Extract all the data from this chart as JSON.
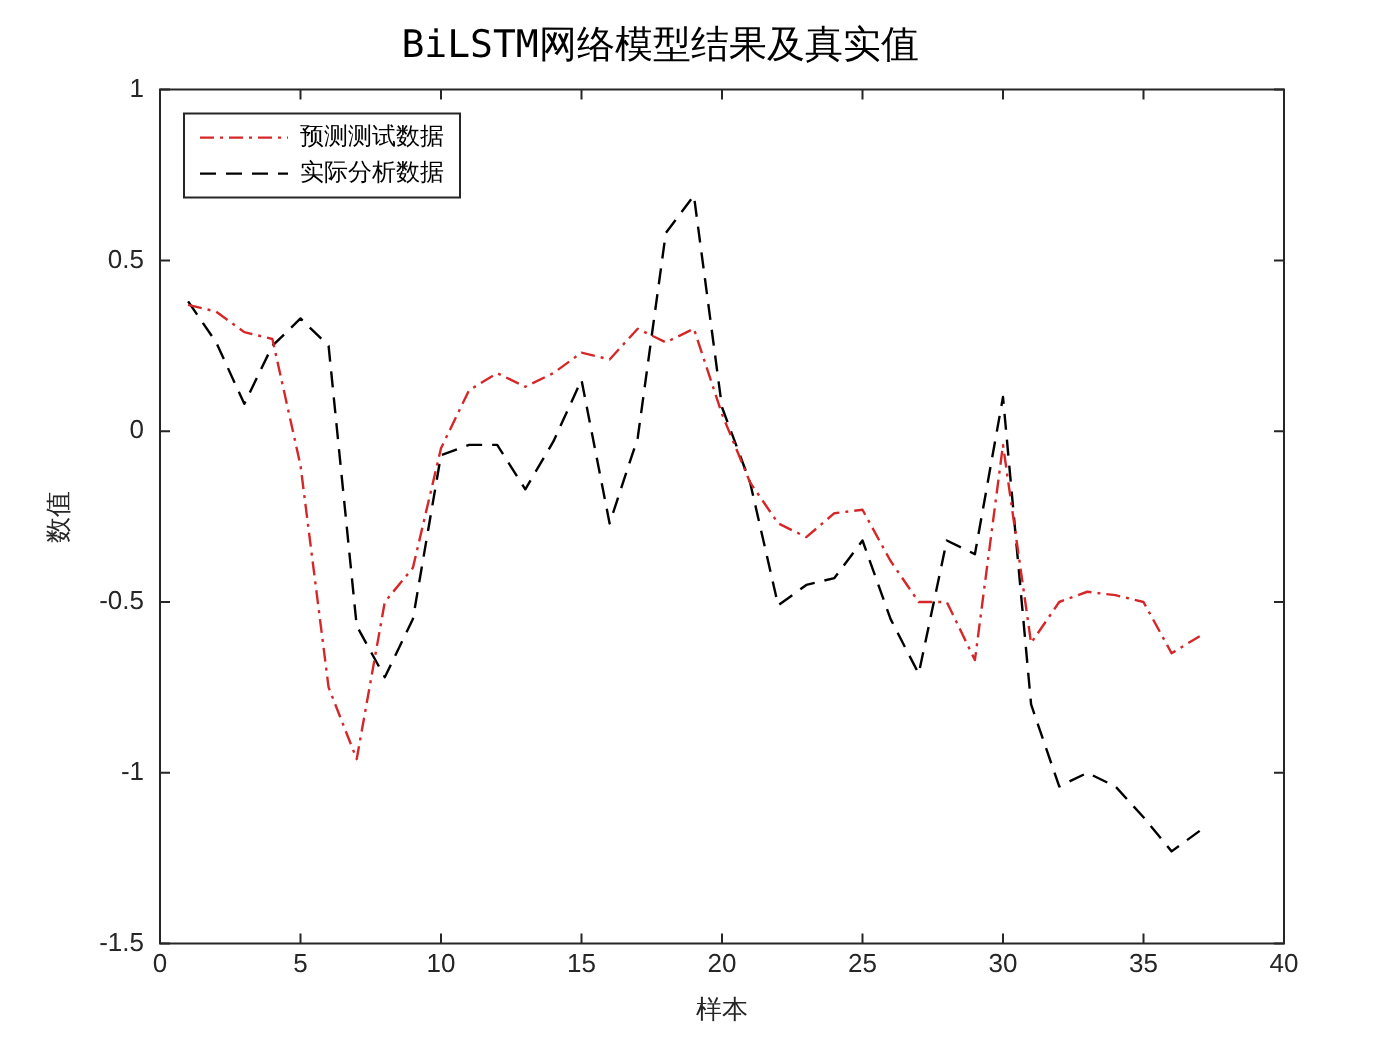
{
  "chart_data": {
    "type": "line",
    "title": "BiLSTM网络模型结果及真实值",
    "xlabel": "样本",
    "ylabel": "数值",
    "x": [
      1,
      2,
      3,
      4,
      5,
      6,
      7,
      8,
      9,
      10,
      11,
      12,
      13,
      14,
      15,
      16,
      17,
      18,
      19,
      20,
      21,
      22,
      23,
      24,
      25,
      26,
      27,
      28,
      29,
      30,
      31,
      32,
      33,
      34,
      35,
      36,
      37
    ],
    "series": [
      {
        "name": "预测测试数据",
        "color": "#d62728",
        "line_style": "dashdot",
        "values": [
          0.37,
          0.35,
          0.29,
          0.27,
          -0.1,
          -0.75,
          -0.96,
          -0.5,
          -0.4,
          -0.05,
          0.12,
          0.17,
          0.13,
          0.17,
          0.23,
          0.21,
          0.3,
          0.26,
          0.3,
          0.05,
          -0.15,
          -0.27,
          -0.31,
          -0.24,
          -0.23,
          -0.38,
          -0.5,
          -0.5,
          -0.67,
          -0.04,
          -0.62,
          -0.5,
          -0.47,
          -0.48,
          -0.5,
          -0.65,
          -0.6
        ]
      },
      {
        "name": "实际分析数据",
        "color": "#000000",
        "line_style": "dashed",
        "values": [
          0.38,
          0.26,
          0.08,
          0.25,
          0.33,
          0.25,
          -0.57,
          -0.72,
          -0.55,
          -0.07,
          -0.04,
          -0.04,
          -0.17,
          -0.03,
          0.15,
          -0.27,
          -0.02,
          0.58,
          0.69,
          0.07,
          -0.15,
          -0.51,
          -0.45,
          -0.43,
          -0.32,
          -0.55,
          -0.71,
          -0.32,
          -0.36,
          0.1,
          -0.8,
          -1.04,
          -1.0,
          -1.04,
          -1.13,
          -1.23,
          -1.17
        ]
      }
    ],
    "xlim": [
      0,
      40
    ],
    "xticks": [
      0,
      5,
      10,
      15,
      20,
      25,
      30,
      35,
      40
    ],
    "ylim": [
      -1.5,
      1
    ],
    "yticks": [
      -1.5,
      -1,
      -0.5,
      0,
      0.5,
      1
    ],
    "grid": false,
    "legend": "top left",
    "marker": "none"
  }
}
